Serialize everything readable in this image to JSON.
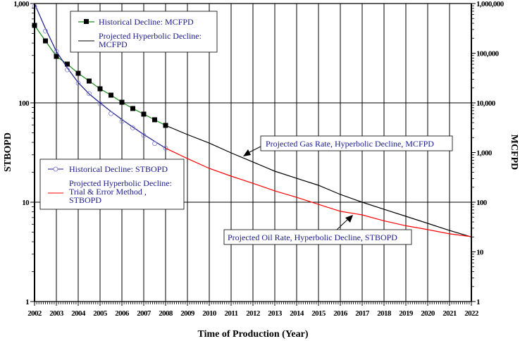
{
  "chart_data": {
    "type": "line",
    "title": "",
    "xlabel": "Time of Production (Year)",
    "ylabel_left": "STBOPD",
    "ylabel_right": "MCFPD",
    "xlim": [
      2002,
      2022
    ],
    "ylim_left": [
      1,
      1000
    ],
    "ylim_right": [
      1,
      1000000
    ],
    "yscale": "log",
    "grid": true,
    "x_ticks": [
      "2002",
      "2003",
      "2004",
      "2005",
      "2006",
      "2007",
      "2008",
      "2009",
      "2010",
      "2011",
      "2012",
      "2013",
      "2014",
      "2015",
      "2016",
      "2017",
      "2018",
      "2019",
      "2020",
      "2021",
      "2022"
    ],
    "y_ticks_left": [
      {
        "value": 1,
        "label": "1"
      },
      {
        "value": 10,
        "label": "10"
      },
      {
        "value": 100,
        "label": "100"
      },
      {
        "value": 1000,
        "label": "1,000"
      }
    ],
    "y_ticks_right": [
      {
        "value": 1,
        "label": "1"
      },
      {
        "value": 10,
        "label": "10"
      },
      {
        "value": 100,
        "label": "100"
      },
      {
        "value": 1000,
        "label": "1,000"
      },
      {
        "value": 10000,
        "label": "10,000"
      },
      {
        "value": 100000,
        "label": "100,000"
      },
      {
        "value": 1000000,
        "label": "1,000,000"
      }
    ],
    "series": [
      {
        "name": "Historical Decline:  MCFPD",
        "axis": "right",
        "color": "#1a8c1a",
        "marker": "square",
        "marker_color": "#000000",
        "x": [
          2002,
          2002.5,
          2003,
          2003.5,
          2004,
          2004.5,
          2005,
          2005.5,
          2006,
          2006.5,
          2007,
          2007.5,
          2008
        ],
        "values": [
          363000,
          177000,
          86300,
          60300,
          39400,
          27500,
          19200,
          14300,
          10300,
          7700,
          5930,
          4570,
          3520
        ]
      },
      {
        "name": "Projected Hyperbolic Decline: MCFPD",
        "axis": "right",
        "color": "#000000",
        "marker": "none",
        "x": [
          2008,
          2009,
          2010,
          2011,
          2012,
          2013,
          2014,
          2015,
          2016,
          2017,
          2018,
          2019,
          2020,
          2021,
          2022
        ],
        "values": [
          3520,
          2300,
          1550,
          985,
          645,
          421,
          303,
          219,
          143,
          100,
          72,
          52,
          37.5,
          27,
          20
        ]
      },
      {
        "name": "Historical Decline:  STBOPD",
        "axis": "left",
        "color": "#1a1a8c",
        "marker": "circle",
        "x": [
          2002,
          2002.5,
          2003,
          2003.5,
          2004,
          2004.5,
          2005,
          2005.5,
          2006,
          2006.5,
          2007,
          2007.5,
          2008
        ],
        "values": [
          935,
          528,
          330,
          215,
          158,
          124,
          98,
          78,
          65,
          56,
          47,
          39,
          35
        ],
        "fit_values": [
          1000,
          560,
          330,
          225,
          160,
          123,
          100,
          82,
          68,
          57,
          48,
          41,
          35
        ]
      },
      {
        "name": "Projected Hyperbolic Decline: Trial & Error Method , STBOPD",
        "axis": "left",
        "color": "#ff0000",
        "marker": "none",
        "x": [
          2008,
          2009,
          2010,
          2011,
          2012,
          2013,
          2014,
          2015,
          2016,
          2017,
          2018,
          2019,
          2020,
          2021,
          2022
        ],
        "values": [
          35,
          27.5,
          21.9,
          18.3,
          15.5,
          13,
          11.2,
          9.5,
          8.1,
          7.45,
          6.5,
          5.8,
          5.3,
          4.8,
          4.5
        ]
      }
    ],
    "legend_gas": {
      "items": [
        {
          "label": "Historical Decline:  MCFPD",
          "color": "#1a8c1a",
          "marker": "square"
        },
        {
          "label_lines": [
            "Projected Hyperbolic Decline:",
            "MCFPD"
          ],
          "color": "#000000",
          "marker": "none"
        }
      ],
      "placement": "top-center"
    },
    "legend_oil": {
      "items": [
        {
          "label": "Historical Decline:  STBOPD",
          "color": "#1a1a8c",
          "marker": "circle"
        },
        {
          "label_lines": [
            "Projected Hyperbolic Decline:",
            "Trial & Error Method ,",
            "STBOPD"
          ],
          "color": "#ff0000",
          "marker": "none"
        }
      ],
      "placement": "middle-left"
    },
    "annotations": [
      {
        "text": "Projected Gas Rate, Hyperbolic Decline,  MCFPD",
        "target_year": 2010.5,
        "target_series": "gas"
      },
      {
        "text": "Projected Oil Rate, Hyperbolic Decline,  STBOPD",
        "target_year": 2016.5,
        "target_series": "oil"
      }
    ]
  }
}
